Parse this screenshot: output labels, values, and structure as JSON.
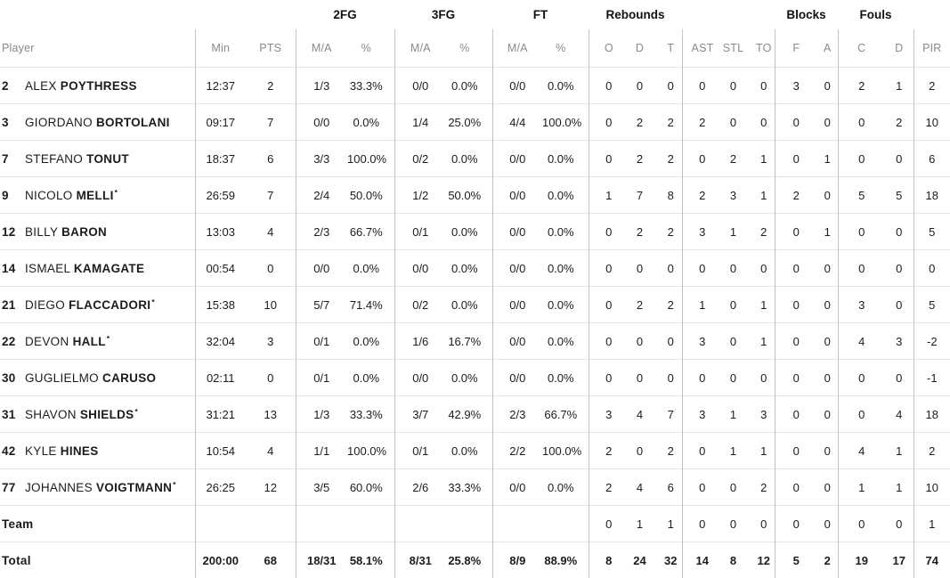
{
  "table": {
    "group_headers": {
      "fg2": "2FG",
      "fg3": "3FG",
      "ft": "FT",
      "rebounds": "Rebounds",
      "blocks": "Blocks",
      "fouls": "Fouls"
    },
    "columns": {
      "player": "Player",
      "min": "Min",
      "pts": "PTS",
      "fg2_ma": "M/A",
      "fg2_pct": "%",
      "fg3_ma": "M/A",
      "fg3_pct": "%",
      "ft_ma": "M/A",
      "ft_pct": "%",
      "reb_o": "O",
      "reb_d": "D",
      "reb_t": "T",
      "ast": "AST",
      "stl": "STL",
      "to": "TO",
      "blk_f": "F",
      "blk_a": "A",
      "foul_c": "C",
      "foul_d": "D",
      "pir": "PIR"
    },
    "starter_mark": "*",
    "players": [
      {
        "num": "2",
        "first": "ALEX",
        "last": "POYTHRESS",
        "starter": false,
        "min": "12:37",
        "pts": "2",
        "fg2_ma": "1/3",
        "fg2_pct": "33.3%",
        "fg3_ma": "0/0",
        "fg3_pct": "0.0%",
        "ft_ma": "0/0",
        "ft_pct": "0.0%",
        "reb_o": "0",
        "reb_d": "0",
        "reb_t": "0",
        "ast": "0",
        "stl": "0",
        "to": "0",
        "blk_f": "3",
        "blk_a": "0",
        "foul_c": "2",
        "foul_d": "1",
        "pir": "2"
      },
      {
        "num": "3",
        "first": "GIORDANO",
        "last": "BORTOLANI",
        "starter": false,
        "min": "09:17",
        "pts": "7",
        "fg2_ma": "0/0",
        "fg2_pct": "0.0%",
        "fg3_ma": "1/4",
        "fg3_pct": "25.0%",
        "ft_ma": "4/4",
        "ft_pct": "100.0%",
        "reb_o": "0",
        "reb_d": "2",
        "reb_t": "2",
        "ast": "2",
        "stl": "0",
        "to": "0",
        "blk_f": "0",
        "blk_a": "0",
        "foul_c": "0",
        "foul_d": "2",
        "pir": "10"
      },
      {
        "num": "7",
        "first": "STEFANO",
        "last": "TONUT",
        "starter": false,
        "min": "18:37",
        "pts": "6",
        "fg2_ma": "3/3",
        "fg2_pct": "100.0%",
        "fg3_ma": "0/2",
        "fg3_pct": "0.0%",
        "ft_ma": "0/0",
        "ft_pct": "0.0%",
        "reb_o": "0",
        "reb_d": "2",
        "reb_t": "2",
        "ast": "0",
        "stl": "2",
        "to": "1",
        "blk_f": "0",
        "blk_a": "1",
        "foul_c": "0",
        "foul_d": "0",
        "pir": "6"
      },
      {
        "num": "9",
        "first": "NICOLO",
        "last": "MELLI",
        "starter": true,
        "min": "26:59",
        "pts": "7",
        "fg2_ma": "2/4",
        "fg2_pct": "50.0%",
        "fg3_ma": "1/2",
        "fg3_pct": "50.0%",
        "ft_ma": "0/0",
        "ft_pct": "0.0%",
        "reb_o": "1",
        "reb_d": "7",
        "reb_t": "8",
        "ast": "2",
        "stl": "3",
        "to": "1",
        "blk_f": "2",
        "blk_a": "0",
        "foul_c": "5",
        "foul_d": "5",
        "pir": "18"
      },
      {
        "num": "12",
        "first": "BILLY",
        "last": "BARON",
        "starter": false,
        "min": "13:03",
        "pts": "4",
        "fg2_ma": "2/3",
        "fg2_pct": "66.7%",
        "fg3_ma": "0/1",
        "fg3_pct": "0.0%",
        "ft_ma": "0/0",
        "ft_pct": "0.0%",
        "reb_o": "0",
        "reb_d": "2",
        "reb_t": "2",
        "ast": "3",
        "stl": "1",
        "to": "2",
        "blk_f": "0",
        "blk_a": "1",
        "foul_c": "0",
        "foul_d": "0",
        "pir": "5"
      },
      {
        "num": "14",
        "first": "ISMAEL",
        "last": "KAMAGATE",
        "starter": false,
        "min": "00:54",
        "pts": "0",
        "fg2_ma": "0/0",
        "fg2_pct": "0.0%",
        "fg3_ma": "0/0",
        "fg3_pct": "0.0%",
        "ft_ma": "0/0",
        "ft_pct": "0.0%",
        "reb_o": "0",
        "reb_d": "0",
        "reb_t": "0",
        "ast": "0",
        "stl": "0",
        "to": "0",
        "blk_f": "0",
        "blk_a": "0",
        "foul_c": "0",
        "foul_d": "0",
        "pir": "0"
      },
      {
        "num": "21",
        "first": "DIEGO",
        "last": "FLACCADORI",
        "starter": true,
        "min": "15:38",
        "pts": "10",
        "fg2_ma": "5/7",
        "fg2_pct": "71.4%",
        "fg3_ma": "0/2",
        "fg3_pct": "0.0%",
        "ft_ma": "0/0",
        "ft_pct": "0.0%",
        "reb_o": "0",
        "reb_d": "2",
        "reb_t": "2",
        "ast": "1",
        "stl": "0",
        "to": "1",
        "blk_f": "0",
        "blk_a": "0",
        "foul_c": "3",
        "foul_d": "0",
        "pir": "5"
      },
      {
        "num": "22",
        "first": "DEVON",
        "last": "HALL",
        "starter": true,
        "min": "32:04",
        "pts": "3",
        "fg2_ma": "0/1",
        "fg2_pct": "0.0%",
        "fg3_ma": "1/6",
        "fg3_pct": "16.7%",
        "ft_ma": "0/0",
        "ft_pct": "0.0%",
        "reb_o": "0",
        "reb_d": "0",
        "reb_t": "0",
        "ast": "3",
        "stl": "0",
        "to": "1",
        "blk_f": "0",
        "blk_a": "0",
        "foul_c": "4",
        "foul_d": "3",
        "pir": "-2"
      },
      {
        "num": "30",
        "first": "GUGLIELMO",
        "last": "CARUSO",
        "starter": false,
        "min": "02:11",
        "pts": "0",
        "fg2_ma": "0/1",
        "fg2_pct": "0.0%",
        "fg3_ma": "0/0",
        "fg3_pct": "0.0%",
        "ft_ma": "0/0",
        "ft_pct": "0.0%",
        "reb_o": "0",
        "reb_d": "0",
        "reb_t": "0",
        "ast": "0",
        "stl": "0",
        "to": "0",
        "blk_f": "0",
        "blk_a": "0",
        "foul_c": "0",
        "foul_d": "0",
        "pir": "-1"
      },
      {
        "num": "31",
        "first": "SHAVON",
        "last": "SHIELDS",
        "starter": true,
        "min": "31:21",
        "pts": "13",
        "fg2_ma": "1/3",
        "fg2_pct": "33.3%",
        "fg3_ma": "3/7",
        "fg3_pct": "42.9%",
        "ft_ma": "2/3",
        "ft_pct": "66.7%",
        "reb_o": "3",
        "reb_d": "4",
        "reb_t": "7",
        "ast": "3",
        "stl": "1",
        "to": "3",
        "blk_f": "0",
        "blk_a": "0",
        "foul_c": "0",
        "foul_d": "4",
        "pir": "18"
      },
      {
        "num": "42",
        "first": "KYLE",
        "last": "HINES",
        "starter": false,
        "min": "10:54",
        "pts": "4",
        "fg2_ma": "1/1",
        "fg2_pct": "100.0%",
        "fg3_ma": "0/1",
        "fg3_pct": "0.0%",
        "ft_ma": "2/2",
        "ft_pct": "100.0%",
        "reb_o": "2",
        "reb_d": "0",
        "reb_t": "2",
        "ast": "0",
        "stl": "1",
        "to": "1",
        "blk_f": "0",
        "blk_a": "0",
        "foul_c": "4",
        "foul_d": "1",
        "pir": "2"
      },
      {
        "num": "77",
        "first": "JOHANNES",
        "last": "VOIGTMANN",
        "starter": true,
        "min": "26:25",
        "pts": "12",
        "fg2_ma": "3/5",
        "fg2_pct": "60.0%",
        "fg3_ma": "2/6",
        "fg3_pct": "33.3%",
        "ft_ma": "0/0",
        "ft_pct": "0.0%",
        "reb_o": "2",
        "reb_d": "4",
        "reb_t": "6",
        "ast": "0",
        "stl": "0",
        "to": "2",
        "blk_f": "0",
        "blk_a": "0",
        "foul_c": "1",
        "foul_d": "1",
        "pir": "10"
      }
    ],
    "team_row": {
      "label": "Team",
      "min": "",
      "pts": "",
      "fg2_ma": "",
      "fg2_pct": "",
      "fg3_ma": "",
      "fg3_pct": "",
      "ft_ma": "",
      "ft_pct": "",
      "reb_o": "0",
      "reb_d": "1",
      "reb_t": "1",
      "ast": "0",
      "stl": "0",
      "to": "0",
      "blk_f": "0",
      "blk_a": "0",
      "foul_c": "0",
      "foul_d": "0",
      "pir": "1"
    },
    "total_row": {
      "label": "Total",
      "min": "200:00",
      "pts": "68",
      "fg2_ma": "18/31",
      "fg2_pct": "58.1%",
      "fg3_ma": "8/31",
      "fg3_pct": "25.8%",
      "ft_ma": "8/9",
      "ft_pct": "88.9%",
      "reb_o": "8",
      "reb_d": "24",
      "reb_t": "32",
      "ast": "14",
      "stl": "8",
      "to": "12",
      "blk_f": "5",
      "blk_a": "2",
      "foul_c": "19",
      "foul_d": "17",
      "pir": "74"
    }
  },
  "colors": {
    "text": "#1c1c1c",
    "header_gray": "#8a8a8a",
    "divider_vertical": "#c4c4c4",
    "divider_horizontal": "#e5e5e5",
    "background": "#ffffff"
  }
}
